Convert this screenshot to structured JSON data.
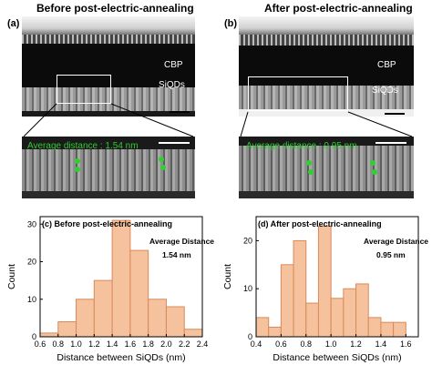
{
  "header_left": "Before post-electric-annealing",
  "header_right": "After post-electric-annealing",
  "panel_a": "(a)",
  "panel_b": "(b)",
  "label_cbp": "CBP",
  "label_siqds": "SiQDs",
  "avg_left": "Average distance : 1.54 nm",
  "avg_right": "Average distance : 0.95 nm",
  "colors": {
    "bar_fill": "#f6c19d",
    "bar_stroke": "#d98a5a",
    "avg_text": "#2ecc2e"
  },
  "chart_data": [
    {
      "type": "bar",
      "panel": "(c)",
      "title": "Before post-electric-annealing",
      "annotation": [
        "Average Distance",
        "1.54 nm"
      ],
      "xlabel": "Distance between SiQDs (nm)",
      "ylabel": "Count",
      "xlim": [
        0.6,
        2.4
      ],
      "ylim": [
        0,
        32
      ],
      "xticks": [
        "0.6",
        "0.8",
        "1.0",
        "1.2",
        "1.4",
        "1.6",
        "1.8",
        "2.0",
        "2.2",
        "2.4"
      ],
      "yticks": [
        "0",
        "10",
        "20",
        "30"
      ],
      "bin_width": 0.2,
      "bin_starts": [
        0.6,
        0.8,
        1.0,
        1.2,
        1.4,
        1.6,
        1.8,
        2.0,
        2.2
      ],
      "values": [
        1,
        4,
        10,
        15,
        31,
        23,
        10,
        8,
        2
      ]
    },
    {
      "type": "bar",
      "panel": "(d)",
      "title": "After post-electric-annealing",
      "annotation": [
        "Average Distance",
        "0.95 nm"
      ],
      "xlabel": "Distance between SiQDs (nm)",
      "ylabel": "Count",
      "xlim": [
        0.4,
        1.7
      ],
      "ylim": [
        0,
        25
      ],
      "xticks": [
        "0.4",
        "0.6",
        "0.8",
        "1.0",
        "1.2",
        "1.4",
        "1.6"
      ],
      "yticks": [
        "0",
        "10",
        "20"
      ],
      "bin_width": 0.1,
      "bin_starts": [
        0.4,
        0.5,
        0.6,
        0.7,
        0.8,
        0.9,
        1.0,
        1.1,
        1.2,
        1.3,
        1.4,
        1.5
      ],
      "values": [
        4,
        2,
        15,
        20,
        7,
        23,
        8,
        10,
        11,
        4,
        3,
        3
      ]
    }
  ]
}
